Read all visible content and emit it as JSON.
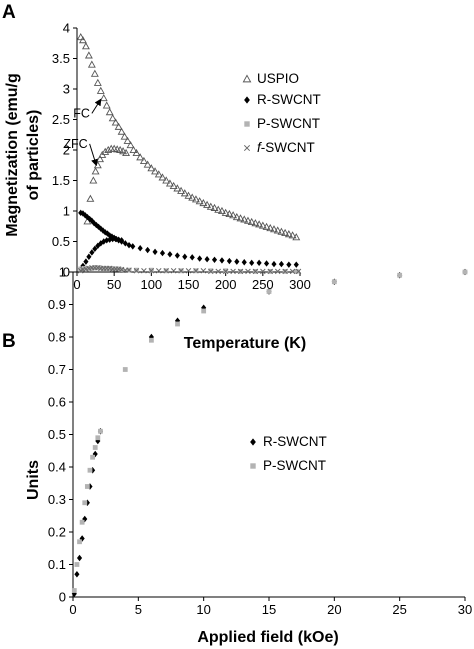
{
  "panels": [
    {
      "label": "A"
    },
    {
      "label": "B"
    }
  ],
  "chart_data": [
    {
      "type": "scatter",
      "xlabel": "Temperature (K)",
      "ylabel_lines": [
        "Magnetization (emu/g",
        "of particles)"
      ],
      "xlim": [
        0,
        300
      ],
      "ylim": [
        0,
        4
      ],
      "xticks": [
        0,
        50,
        100,
        150,
        200,
        250,
        300
      ],
      "yticks": [
        0,
        0.5,
        1,
        1.5,
        2,
        2.5,
        3,
        3.5,
        4
      ],
      "grid": false,
      "legend_position": "right",
      "annotations": [
        {
          "text": "FC",
          "x_arrow": [
            20,
            2.6
          ],
          "to": [
            32,
            2.83
          ]
        },
        {
          "text": "ZFC",
          "x_arrow": [
            17,
            2.1
          ],
          "to": [
            26,
            1.75
          ]
        }
      ],
      "series": [
        {
          "name": "USPIO",
          "marker": "open-triangle",
          "color": "#555555",
          "points": [
            [
              5,
              3.85
            ],
            [
              8,
              3.8
            ],
            [
              12,
              3.7
            ],
            [
              16,
              3.55
            ],
            [
              20,
              3.4
            ],
            [
              24,
              3.25
            ],
            [
              28,
              3.1
            ],
            [
              32,
              2.97
            ],
            [
              36,
              2.85
            ],
            [
              40,
              2.73
            ],
            [
              44,
              2.62
            ],
            [
              48,
              2.52
            ],
            [
              52,
              2.45
            ],
            [
              56,
              2.38
            ],
            [
              60,
              2.3
            ],
            [
              64,
              2.22
            ],
            [
              68,
              2.15
            ],
            [
              72,
              2.08
            ],
            [
              76,
              2.0
            ],
            [
              80,
              1.95
            ],
            [
              85,
              1.88
            ],
            [
              90,
              1.82
            ],
            [
              95,
              1.76
            ],
            [
              100,
              1.7
            ],
            [
              105,
              1.65
            ],
            [
              110,
              1.6
            ],
            [
              115,
              1.55
            ],
            [
              120,
              1.5
            ],
            [
              125,
              1.45
            ],
            [
              130,
              1.41
            ],
            [
              135,
              1.37
            ],
            [
              140,
              1.33
            ],
            [
              145,
              1.29
            ],
            [
              150,
              1.25
            ],
            [
              155,
              1.22
            ],
            [
              160,
              1.19
            ],
            [
              165,
              1.16
            ],
            [
              170,
              1.13
            ],
            [
              175,
              1.1
            ],
            [
              180,
              1.07
            ],
            [
              185,
              1.05
            ],
            [
              190,
              1.02
            ],
            [
              195,
              1.0
            ],
            [
              200,
              0.97
            ],
            [
              205,
              0.95
            ],
            [
              210,
              0.93
            ],
            [
              215,
              0.9
            ],
            [
              220,
              0.88
            ],
            [
              225,
              0.86
            ],
            [
              230,
              0.84
            ],
            [
              235,
              0.82
            ],
            [
              240,
              0.8
            ],
            [
              245,
              0.78
            ],
            [
              250,
              0.76
            ],
            [
              255,
              0.74
            ],
            [
              260,
              0.72
            ],
            [
              265,
              0.7
            ],
            [
              270,
              0.68
            ],
            [
              275,
              0.66
            ],
            [
              280,
              0.64
            ],
            [
              285,
              0.62
            ],
            [
              290,
              0.6
            ],
            [
              295,
              0.57
            ],
            [
              14,
              0.83
            ],
            [
              18,
              1.2
            ],
            [
              22,
              1.5
            ],
            [
              25,
              1.65
            ],
            [
              28,
              1.75
            ],
            [
              31,
              1.85
            ],
            [
              34,
              1.92
            ],
            [
              38,
              1.97
            ],
            [
              42,
              2.0
            ],
            [
              46,
              2.02
            ],
            [
              50,
              2.02
            ],
            [
              54,
              2.01
            ],
            [
              58,
              2.0
            ],
            [
              62,
              1.98
            ],
            [
              66,
              1.95
            ]
          ]
        },
        {
          "name": "R-SWCNT",
          "marker": "filled-diamond",
          "color": "#000000",
          "points": [
            [
              5,
              0.97
            ],
            [
              8,
              0.96
            ],
            [
              11,
              0.93
            ],
            [
              14,
              0.9
            ],
            [
              17,
              0.87
            ],
            [
              20,
              0.84
            ],
            [
              23,
              0.8
            ],
            [
              26,
              0.77
            ],
            [
              29,
              0.74
            ],
            [
              32,
              0.71
            ],
            [
              35,
              0.68
            ],
            [
              38,
              0.65
            ],
            [
              41,
              0.63
            ],
            [
              44,
              0.6
            ],
            [
              47,
              0.58
            ],
            [
              50,
              0.56
            ],
            [
              53,
              0.54
            ],
            [
              56,
              0.52
            ],
            [
              60,
              0.5
            ],
            [
              65,
              0.47
            ],
            [
              70,
              0.44
            ],
            [
              75,
              0.42
            ],
            [
              85,
              0.39
            ],
            [
              95,
              0.36
            ],
            [
              105,
              0.33
            ],
            [
              115,
              0.31
            ],
            [
              125,
              0.29
            ],
            [
              135,
              0.27
            ],
            [
              145,
              0.25
            ],
            [
              155,
              0.24
            ],
            [
              165,
              0.22
            ],
            [
              175,
              0.21
            ],
            [
              185,
              0.2
            ],
            [
              195,
              0.19
            ],
            [
              205,
              0.18
            ],
            [
              215,
              0.17
            ],
            [
              225,
              0.16
            ],
            [
              235,
              0.15
            ],
            [
              245,
              0.15
            ],
            [
              255,
              0.14
            ],
            [
              265,
              0.13
            ],
            [
              275,
              0.13
            ],
            [
              285,
              0.12
            ],
            [
              295,
              0.12
            ],
            [
              8,
              0.1
            ],
            [
              12,
              0.17
            ],
            [
              16,
              0.25
            ],
            [
              20,
              0.32
            ],
            [
              24,
              0.38
            ],
            [
              28,
              0.43
            ],
            [
              32,
              0.47
            ],
            [
              36,
              0.5
            ],
            [
              40,
              0.52
            ],
            [
              44,
              0.53
            ],
            [
              48,
              0.54
            ],
            [
              52,
              0.54
            ],
            [
              56,
              0.53
            ],
            [
              60,
              0.52
            ]
          ]
        },
        {
          "name": "P-SWCNT",
          "marker": "filled-square",
          "color": "#b3b3b3",
          "points": [
            [
              5,
              0.05
            ],
            [
              10,
              0.06
            ],
            [
              15,
              0.06
            ],
            [
              20,
              0.06
            ],
            [
              25,
              0.07
            ],
            [
              30,
              0.07
            ],
            [
              35,
              0.06
            ],
            [
              40,
              0.06
            ],
            [
              45,
              0.06
            ],
            [
              50,
              0.05
            ],
            [
              55,
              0.05
            ],
            [
              60,
              0.04
            ],
            [
              70,
              0.03
            ],
            [
              80,
              0.03
            ],
            [
              100,
              0.03
            ],
            [
              120,
              0.02
            ],
            [
              140,
              0.02
            ],
            [
              160,
              0.02
            ],
            [
              180,
              0.02
            ],
            [
              200,
              0.02
            ],
            [
              220,
              0.01
            ],
            [
              240,
              0.01
            ],
            [
              260,
              0.01
            ],
            [
              280,
              0.01
            ],
            [
              295,
              0.01
            ]
          ]
        },
        {
          "name": "f-SWCNT",
          "name_prefix": "f",
          "name_suffix": "-SWCNT",
          "marker": "x",
          "color": "#666666",
          "points": [
            [
              5,
              0.02
            ],
            [
              8,
              0.04
            ],
            [
              12,
              0.05
            ],
            [
              16,
              0.06
            ],
            [
              20,
              0.07
            ],
            [
              24,
              0.07
            ],
            [
              28,
              0.07
            ],
            [
              32,
              0.06
            ],
            [
              36,
              0.06
            ],
            [
              40,
              0.06
            ],
            [
              44,
              0.06
            ],
            [
              48,
              0.05
            ],
            [
              52,
              0.05
            ],
            [
              56,
              0.05
            ],
            [
              60,
              0.04
            ],
            [
              65,
              0.03
            ],
            [
              70,
              0.03
            ],
            [
              80,
              0.02
            ],
            [
              90,
              0.02
            ],
            [
              100,
              0.02
            ],
            [
              110,
              0.02
            ],
            [
              120,
              0.02
            ],
            [
              130,
              0.02
            ],
            [
              140,
              0.02
            ],
            [
              150,
              0.02
            ],
            [
              160,
              0.02
            ],
            [
              170,
              0.02
            ],
            [
              180,
              0.01
            ],
            [
              190,
              0.01
            ],
            [
              200,
              0.01
            ],
            [
              210,
              0.01
            ],
            [
              220,
              0.01
            ],
            [
              230,
              0.01
            ],
            [
              240,
              0.01
            ],
            [
              250,
              0.01
            ],
            [
              260,
              0.01
            ],
            [
              270,
              0.01
            ],
            [
              280,
              0.01
            ],
            [
              290,
              0.01
            ],
            [
              298,
              0.01
            ]
          ]
        }
      ]
    },
    {
      "type": "scatter",
      "xlabel": "Applied field (kOe)",
      "ylabel": "Units",
      "xlim": [
        0,
        30
      ],
      "ylim": [
        0,
        1
      ],
      "xticks": [
        0,
        5,
        10,
        15,
        20,
        25,
        30
      ],
      "yticks": [
        0,
        0.1,
        0.2,
        0.3,
        0.4,
        0.5,
        0.6,
        0.7,
        0.8,
        0.9,
        1
      ],
      "grid": false,
      "legend_position": "center",
      "series": [
        {
          "name": "R-SWCNT",
          "marker": "filled-diamond",
          "color": "#000000",
          "points": [
            [
              0.1,
              0.01
            ],
            [
              0.3,
              0.07
            ],
            [
              0.5,
              0.12
            ],
            [
              0.7,
              0.18
            ],
            [
              0.9,
              0.24
            ],
            [
              1.1,
              0.29
            ],
            [
              1.3,
              0.34
            ],
            [
              1.5,
              0.39
            ],
            [
              1.7,
              0.44
            ],
            [
              1.9,
              0.48
            ],
            [
              2.1,
              0.51
            ],
            [
              6,
              0.8
            ],
            [
              8,
              0.85
            ],
            [
              10,
              0.89
            ],
            [
              15,
              0.94
            ],
            [
              20,
              0.97
            ],
            [
              25,
              0.99
            ],
            [
              30,
              1.0
            ]
          ]
        },
        {
          "name": "P-SWCNT",
          "marker": "filled-square",
          "color": "#b3b3b3",
          "points": [
            [
              0.1,
              0.02
            ],
            [
              0.3,
              0.1
            ],
            [
              0.5,
              0.17
            ],
            [
              0.7,
              0.23
            ],
            [
              0.9,
              0.29
            ],
            [
              1.1,
              0.34
            ],
            [
              1.3,
              0.39
            ],
            [
              1.5,
              0.43
            ],
            [
              1.7,
              0.46
            ],
            [
              1.9,
              0.49
            ],
            [
              2.1,
              0.51
            ],
            [
              4,
              0.7
            ],
            [
              6,
              0.79
            ],
            [
              8,
              0.84
            ],
            [
              10,
              0.88
            ],
            [
              15,
              0.94
            ],
            [
              20,
              0.97
            ],
            [
              25,
              0.99
            ],
            [
              30,
              1.0
            ]
          ]
        }
      ]
    }
  ]
}
